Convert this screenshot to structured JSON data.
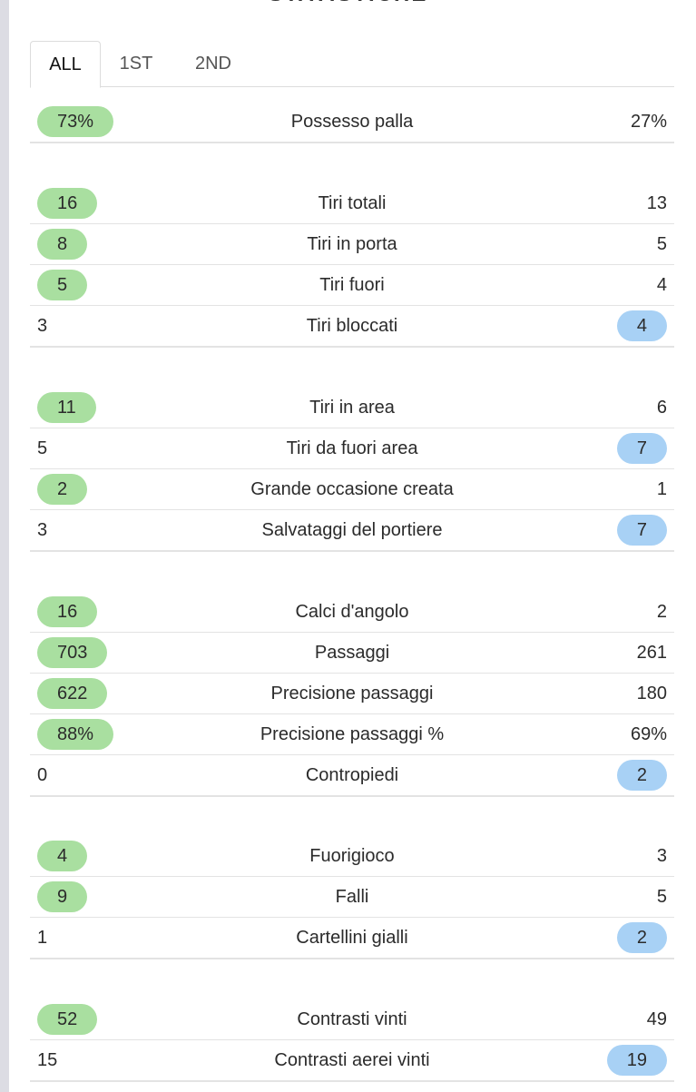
{
  "heading": "STATISTICHE",
  "tabs": [
    {
      "label": "ALL",
      "active": true
    },
    {
      "label": "1ST",
      "active": false
    },
    {
      "label": "2ND",
      "active": false
    }
  ],
  "colors": {
    "home_highlight": "#a9dfa0",
    "away_highlight": "#a8d1f5"
  },
  "groups": [
    [
      {
        "label": "Possesso palla",
        "home": "73%",
        "away": "27%",
        "winner": "home"
      }
    ],
    [
      {
        "label": "Tiri totali",
        "home": "16",
        "away": "13",
        "winner": "home"
      },
      {
        "label": "Tiri in porta",
        "home": "8",
        "away": "5",
        "winner": "home"
      },
      {
        "label": "Tiri fuori",
        "home": "5",
        "away": "4",
        "winner": "home"
      },
      {
        "label": "Tiri bloccati",
        "home": "3",
        "away": "4",
        "winner": "away"
      }
    ],
    [
      {
        "label": "Tiri in area",
        "home": "11",
        "away": "6",
        "winner": "home"
      },
      {
        "label": "Tiri da fuori area",
        "home": "5",
        "away": "7",
        "winner": "away"
      },
      {
        "label": "Grande occasione creata",
        "home": "2",
        "away": "1",
        "winner": "home"
      },
      {
        "label": "Salvataggi del portiere",
        "home": "3",
        "away": "7",
        "winner": "away"
      }
    ],
    [
      {
        "label": "Calci d'angolo",
        "home": "16",
        "away": "2",
        "winner": "home"
      },
      {
        "label": "Passaggi",
        "home": "703",
        "away": "261",
        "winner": "home"
      },
      {
        "label": "Precisione passaggi",
        "home": "622",
        "away": "180",
        "winner": "home"
      },
      {
        "label": "Precisione passaggi %",
        "home": "88%",
        "away": "69%",
        "winner": "home"
      },
      {
        "label": "Contropiedi",
        "home": "0",
        "away": "2",
        "winner": "away"
      }
    ],
    [
      {
        "label": "Fuorigioco",
        "home": "4",
        "away": "3",
        "winner": "home"
      },
      {
        "label": "Falli",
        "home": "9",
        "away": "5",
        "winner": "home"
      },
      {
        "label": "Cartellini gialli",
        "home": "1",
        "away": "2",
        "winner": "away"
      }
    ],
    [
      {
        "label": "Contrasti vinti",
        "home": "52",
        "away": "49",
        "winner": "home"
      },
      {
        "label": "Contrasti aerei vinti",
        "home": "15",
        "away": "19",
        "winner": "away"
      }
    ]
  ]
}
